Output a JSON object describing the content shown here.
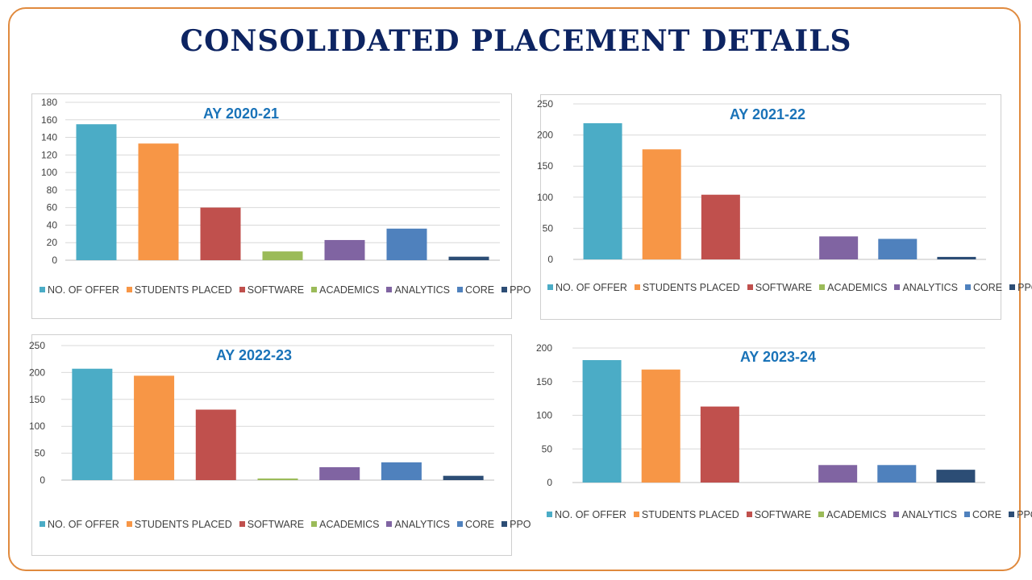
{
  "page": {
    "title": "CONSOLIDATED PLACEMENT DETAILS"
  },
  "legend_colors": {
    "NO. OF OFFER": "#4bacc6",
    "STUDENTS PLACED": "#f79646",
    "SOFTWARE": "#c0504d",
    "ACADEMICS": "#9bbb59",
    "ANALYTICS": "#8064a2",
    "CORE": "#4f81bd",
    "PPO": "#2c4d75"
  },
  "chart_data": [
    {
      "type": "bar",
      "title": "AY 2020-21",
      "categories": [
        "NO. OF OFFER",
        "STUDENTS PLACED",
        "SOFTWARE",
        "ACADEMICS",
        "ANALYTICS",
        "CORE",
        "PPO"
      ],
      "values": [
        155,
        133,
        60,
        10,
        23,
        36,
        4
      ],
      "ylim": [
        0,
        180
      ],
      "yticks": [
        0,
        20,
        40,
        60,
        80,
        100,
        120,
        140,
        160,
        180
      ],
      "grid": true,
      "legend": "bottom"
    },
    {
      "type": "bar",
      "title": "AY 2021-22",
      "categories": [
        "NO. OF OFFER",
        "STUDENTS PLACED",
        "SOFTWARE",
        "ACADEMICS",
        "ANALYTICS",
        "CORE",
        "PPO"
      ],
      "values": [
        219,
        177,
        104,
        0,
        37,
        33,
        4
      ],
      "ylim": [
        0,
        250
      ],
      "yticks": [
        0,
        50,
        100,
        150,
        200,
        250
      ],
      "grid": true,
      "legend": "bottom"
    },
    {
      "type": "bar",
      "title": "AY 2022-23",
      "categories": [
        "NO. OF OFFER",
        "STUDENTS PLACED",
        "SOFTWARE",
        "ACADEMICS",
        "ANALYTICS",
        "CORE",
        "PPO"
      ],
      "values": [
        207,
        194,
        131,
        3,
        24,
        33,
        8
      ],
      "ylim": [
        0,
        250
      ],
      "yticks": [
        0,
        50,
        100,
        150,
        200,
        250
      ],
      "grid": true,
      "legend": "bottom"
    },
    {
      "type": "bar",
      "title": "AY 2023-24",
      "categories": [
        "NO. OF OFFER",
        "STUDENTS PLACED",
        "SOFTWARE",
        "ACADEMICS",
        "ANALYTICS",
        "CORE",
        "PPO"
      ],
      "values": [
        182,
        168,
        113,
        0,
        26,
        26,
        19
      ],
      "ylim": [
        0,
        200
      ],
      "yticks": [
        0,
        50,
        100,
        150,
        200
      ],
      "grid": true,
      "legend": "bottom"
    }
  ]
}
